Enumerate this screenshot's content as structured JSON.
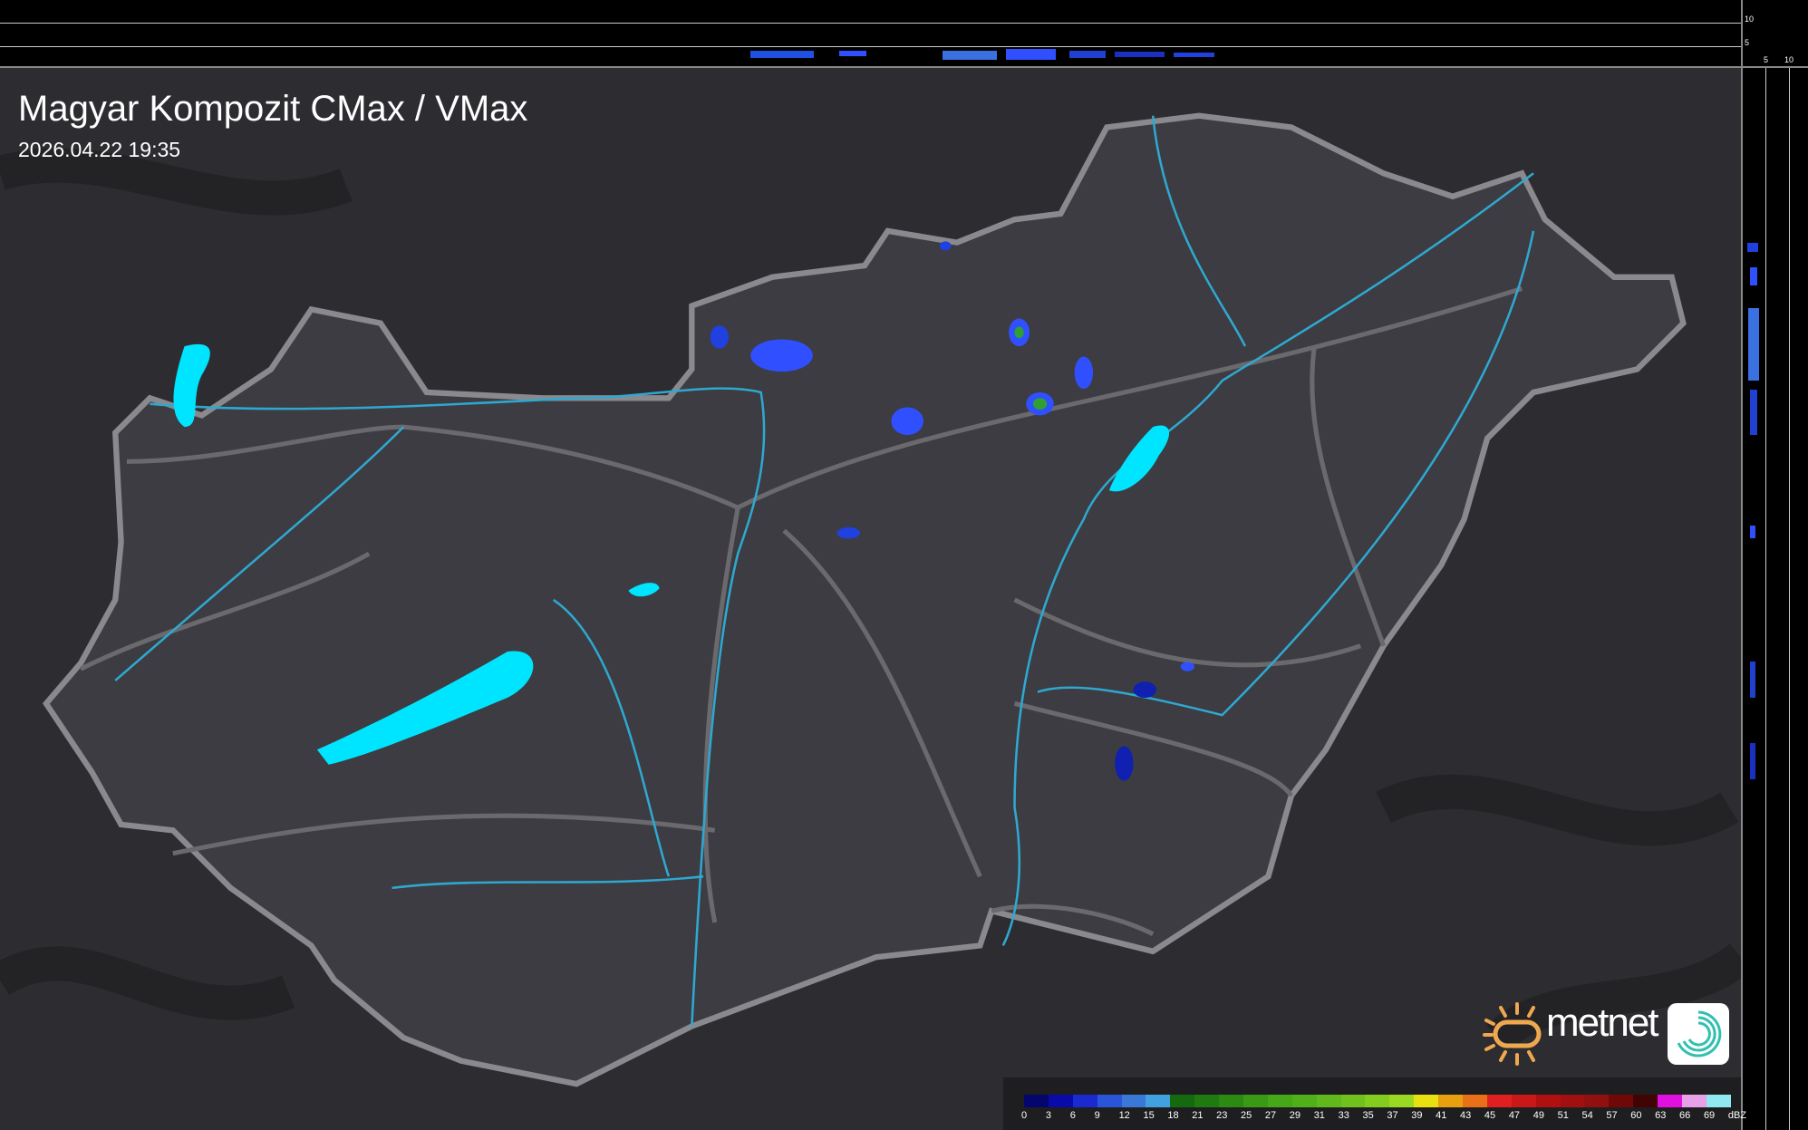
{
  "title": "Magyar Kompozit CMax / VMax",
  "timestamp": "2026.04.22 19:35",
  "side_axis": {
    "top_labels": [
      "10",
      "5"
    ],
    "bottom_labels": [
      "5",
      "10"
    ]
  },
  "logo": {
    "text": "metnet"
  },
  "legend": {
    "unit": "dBZ",
    "labels": [
      "0",
      "3",
      "6",
      "9",
      "12",
      "15",
      "18",
      "21",
      "23",
      "25",
      "27",
      "29",
      "31",
      "33",
      "35",
      "37",
      "39",
      "41",
      "43",
      "45",
      "47",
      "49",
      "51",
      "54",
      "57",
      "60",
      "63",
      "66",
      "69"
    ],
    "colors": [
      "#05056e",
      "#0a0aa8",
      "#1a2ad0",
      "#2b55d8",
      "#3a78d8",
      "#40a0e0",
      "#156a10",
      "#1f7a10",
      "#2a8a12",
      "#3a9a15",
      "#45a818",
      "#50b01a",
      "#60b81c",
      "#70c01e",
      "#85cc20",
      "#9ad822",
      "#e8e010",
      "#e8a010",
      "#e87018",
      "#e02020",
      "#c81818",
      "#b01010",
      "#a01010",
      "#901010",
      "#700808",
      "#400404",
      "#e010e0",
      "#e8a0e8",
      "#90e8f0"
    ]
  },
  "colors": {
    "water": "#00e5ff",
    "river": "#2fa8d0",
    "border": "#8a8a8e",
    "road": "#6a6a6e",
    "radar_light": "#3050ff",
    "radar_dark": "#1020b0",
    "radar_green": "#30a030"
  }
}
